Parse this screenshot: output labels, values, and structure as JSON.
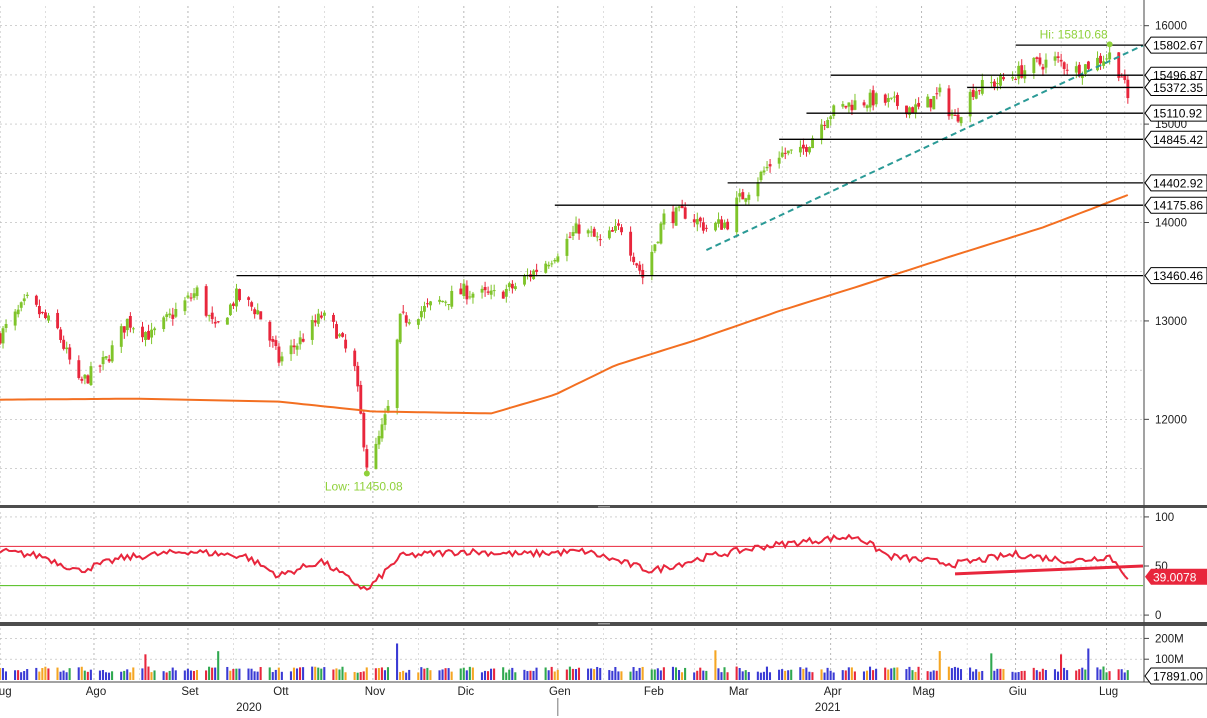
{
  "chart_data": [
    {
      "type": "candlestick",
      "panel": "price",
      "ylim": [
        11150,
        16200
      ],
      "yticks": [
        "16000",
        "15000",
        "14000",
        "13000",
        "12000"
      ],
      "ytick_values": [
        16000,
        15000,
        14000,
        13000,
        12000
      ],
      "colors": {
        "up": "#7fc42a",
        "down": "#e8263c",
        "ma": "#f36f21",
        "trend": "#2a9a96",
        "levels": "#000000",
        "annotation": "#8fd13a"
      },
      "ohlc_anchors": [
        [
          "2020-07-01",
          12850
        ],
        [
          "2020-07-10",
          13200
        ],
        [
          "2020-07-20",
          12900
        ],
        [
          "2020-07-27",
          12350
        ],
        [
          "2020-08-05",
          12600
        ],
        [
          "2020-08-12",
          13000
        ],
        [
          "2020-08-20",
          12850
        ],
        [
          "2020-08-28",
          13100
        ],
        [
          "2020-09-04",
          13300
        ],
        [
          "2020-09-10",
          12900
        ],
        [
          "2020-09-17",
          13250
        ],
        [
          "2020-09-24",
          13100
        ],
        [
          "2020-10-01",
          12600
        ],
        [
          "2020-10-08",
          12800
        ],
        [
          "2020-10-15",
          13050
        ],
        [
          "2020-10-20",
          12900
        ],
        [
          "2020-10-26",
          12500
        ],
        [
          "2020-10-30",
          11550
        ],
        [
          "2020-11-02",
          11700
        ],
        [
          "2020-11-06",
          12100
        ],
        [
          "2020-11-10",
          13000
        ],
        [
          "2020-11-20",
          13150
        ],
        [
          "2020-12-01",
          13300
        ],
        [
          "2020-12-10",
          13250
        ],
        [
          "2020-12-18",
          13350
        ],
        [
          "2020-12-30",
          13650
        ],
        [
          "2021-01-08",
          13950
        ],
        [
          "2021-01-15",
          13800
        ],
        [
          "2021-01-22",
          13950
        ],
        [
          "2021-01-29",
          13450
        ],
        [
          "2021-02-05",
          14050
        ],
        [
          "2021-02-12",
          14100
        ],
        [
          "2021-02-19",
          13950
        ],
        [
          "2021-02-26",
          14000
        ],
        [
          "2021-03-01",
          14200
        ],
        [
          "2021-03-08",
          14450
        ],
        [
          "2021-03-15",
          14700
        ],
        [
          "2021-03-22",
          14700
        ],
        [
          "2021-03-31",
          15100
        ],
        [
          "2021-04-07",
          15200
        ],
        [
          "2021-04-15",
          15250
        ],
        [
          "2021-04-23",
          15200
        ],
        [
          "2021-04-30",
          15150
        ],
        [
          "2021-05-07",
          15300
        ],
        [
          "2021-05-12",
          15050
        ],
        [
          "2021-05-18",
          15350
        ],
        [
          "2021-05-28",
          15450
        ],
        [
          "2021-06-07",
          15600
        ],
        [
          "2021-06-14",
          15650
        ],
        [
          "2021-06-21",
          15550
        ],
        [
          "2021-06-28",
          15650
        ],
        [
          "2021-07-02",
          15700
        ],
        [
          "2021-07-06",
          15500
        ],
        [
          "2021-07-08",
          15250
        ]
      ],
      "moving_average": [
        [
          "2020-07-01",
          12200
        ],
        [
          "2020-08-15",
          12210
        ],
        [
          "2020-10-01",
          12180
        ],
        [
          "2020-11-01",
          12080
        ],
        [
          "2020-12-10",
          12060
        ],
        [
          "2020-12-31",
          12250
        ],
        [
          "2021-01-20",
          12550
        ],
        [
          "2021-02-15",
          12800
        ],
        [
          "2021-03-15",
          13100
        ],
        [
          "2021-04-10",
          13350
        ],
        [
          "2021-05-10",
          13650
        ],
        [
          "2021-06-10",
          13950
        ],
        [
          "2021-07-08",
          14280
        ]
      ],
      "levels": [
        {
          "label": "15802.67",
          "value": 15802.67,
          "from": "2021-06-01",
          "bg": "#ffffff"
        },
        {
          "label": "15496.87",
          "value": 15496.87,
          "from": "2021-04-01",
          "bg": "#ffffff"
        },
        {
          "label": "15372.35",
          "value": 15372.35,
          "from": "2021-05-16",
          "bg": "#ffffff"
        },
        {
          "label": "15110.92",
          "value": 15110.92,
          "from": "2021-03-24",
          "bg": "#ffffff"
        },
        {
          "label": "14845.42",
          "value": 14845.42,
          "from": "2021-03-15",
          "bg": "#ffffff"
        },
        {
          "label": "14402.92",
          "value": 14402.92,
          "from": "2021-02-26",
          "bg": "#ffffff"
        },
        {
          "label": "14175.86",
          "value": 14175.86,
          "from": "2020-12-31",
          "bg": "#ffffff"
        },
        {
          "label": "13460.46",
          "value": 13460.46,
          "from": "2020-09-17",
          "bg": "#ffffff"
        }
      ],
      "trendline": {
        "from": [
          "2021-02-19",
          13720
        ],
        "to": [
          "2021-07-13",
          15800
        ]
      },
      "annotations": [
        {
          "text": "Hi: 15810.68",
          "x": "2021-07-02",
          "y": 15810.68
        },
        {
          "text": "Low: 11450.08",
          "x": "2020-10-30",
          "y": 11450.08
        }
      ]
    },
    {
      "type": "line",
      "panel": "rsi",
      "ylim": [
        -5,
        105
      ],
      "yticks": [
        "100",
        "50",
        "0"
      ],
      "ytick_values": [
        100,
        50,
        0
      ],
      "upper_band": 70,
      "lower_band": 30,
      "last_label": "39.0078",
      "colors": {
        "line": "#e8263c",
        "upper": "#e8263c",
        "lower": "#4cbb17",
        "label_bg": "#e8263c"
      },
      "values": [
        [
          "2020-07-01",
          65
        ],
        [
          "2020-07-15",
          60
        ],
        [
          "2020-07-27",
          45
        ],
        [
          "2020-08-10",
          58
        ],
        [
          "2020-09-01",
          65
        ],
        [
          "2020-09-20",
          60
        ],
        [
          "2020-10-01",
          40
        ],
        [
          "2020-10-15",
          55
        ],
        [
          "2020-10-30",
          25
        ],
        [
          "2020-11-10",
          60
        ],
        [
          "2020-12-01",
          65
        ],
        [
          "2020-12-20",
          62
        ],
        [
          "2021-01-10",
          65
        ],
        [
          "2021-02-01",
          45
        ],
        [
          "2021-02-20",
          60
        ],
        [
          "2021-03-10",
          70
        ],
        [
          "2021-04-01",
          78
        ],
        [
          "2021-04-10",
          80
        ],
        [
          "2021-04-20",
          60
        ],
        [
          "2021-05-12",
          52
        ],
        [
          "2021-06-01",
          62
        ],
        [
          "2021-06-20",
          55
        ],
        [
          "2021-07-02",
          60
        ],
        [
          "2021-07-08",
          39
        ]
      ],
      "support_line": {
        "from": [
          "2021-05-12",
          42
        ],
        "to": [
          "2021-07-13",
          50
        ]
      }
    },
    {
      "type": "bar",
      "panel": "volume",
      "ylim": [
        0,
        250
      ],
      "yticks": [
        "200M",
        "100M"
      ],
      "ytick_values": [
        200,
        100
      ],
      "last_label": "17891.00",
      "colors": {
        "up": "#2fa84f",
        "down": "#e8263c",
        "neutral": "#3a3ad4",
        "other": "#f5a623"
      }
    }
  ],
  "x_axis": {
    "start": "2020-07-01",
    "end": "2021-07-13",
    "months": [
      {
        "label": "Lug",
        "date": "2020-07-01"
      },
      {
        "label": "Ago",
        "date": "2020-08-01"
      },
      {
        "label": "Set",
        "date": "2020-09-01"
      },
      {
        "label": "Ott",
        "date": "2020-10-01"
      },
      {
        "label": "Nov",
        "date": "2020-11-01"
      },
      {
        "label": "Dic",
        "date": "2020-12-01"
      },
      {
        "label": "Gen",
        "date": "2021-01-01"
      },
      {
        "label": "Feb",
        "date": "2021-02-01"
      },
      {
        "label": "Mar",
        "date": "2021-03-01"
      },
      {
        "label": "Apr",
        "date": "2021-04-01"
      },
      {
        "label": "Mag",
        "date": "2021-05-01"
      },
      {
        "label": "Giu",
        "date": "2021-06-01"
      },
      {
        "label": "Lug",
        "date": "2021-07-01"
      }
    ],
    "years": [
      "2020",
      "2021"
    ]
  }
}
